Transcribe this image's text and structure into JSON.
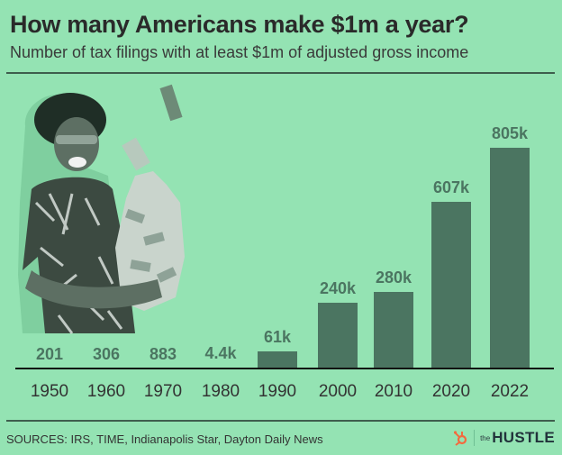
{
  "header": {
    "title": "How many Americans make $1m a year?",
    "subtitle": "Number of tax filings with at least $1m of adjusted gross income"
  },
  "footer": {
    "sources": "SOURCES: IRS, TIME, Indianapolis Star, Dayton Daily News",
    "brand_prefix": "the",
    "brand_name": "HUSTLE",
    "brand_icon": "hubspot-sprocket-icon"
  },
  "colors": {
    "background": "#94e3b3",
    "bar": "#4b7561",
    "label": "#4b7561",
    "logo_accent": "#f36a3e"
  },
  "chart_data": {
    "type": "bar",
    "title": "How many Americans make $1m a year?",
    "subtitle": "Number of tax filings with at least $1m of adjusted gross income",
    "xlabel": "",
    "ylabel": "",
    "categories": [
      "1950",
      "1960",
      "1970",
      "1980",
      "1990",
      "2000",
      "2010",
      "2020",
      "2022"
    ],
    "values": [
      201,
      306,
      883,
      4400,
      61000,
      240000,
      280000,
      607000,
      805000
    ],
    "value_labels": [
      "201",
      "306",
      "883",
      "4.4k",
      "61k",
      "240k",
      "280k",
      "607k",
      "805k"
    ],
    "ylim": [
      0,
      805000
    ],
    "grid": false,
    "legend": "none"
  }
}
